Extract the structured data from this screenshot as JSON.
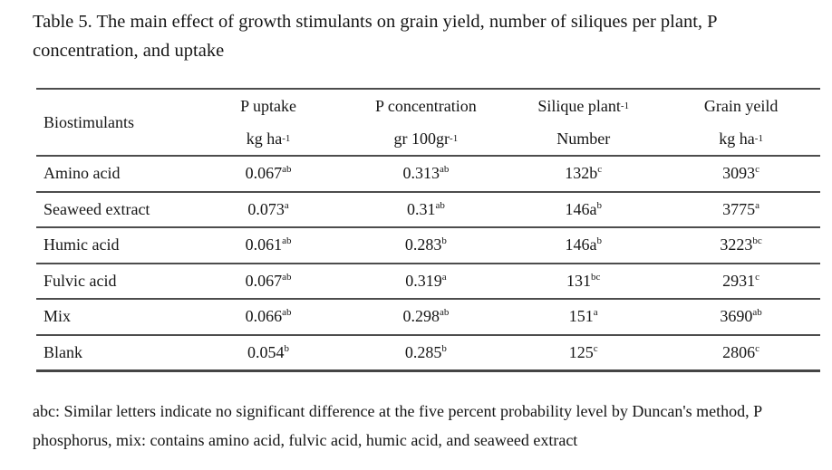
{
  "page": {
    "background": "#ffffff",
    "text_color": "#161616",
    "rule_color": "#4d4d4d"
  },
  "caption": "Table 5. The main effect of growth stimulants on grain yield, number of siliques per plant, P concentration, and uptake",
  "table": {
    "row_header_title": "Biostimulants",
    "columns": [
      {
        "id": "p-uptake",
        "line1": [
          {
            "t": "P uptake"
          }
        ],
        "line2": [
          {
            "t": "kg ha"
          },
          {
            "s": "-1"
          }
        ]
      },
      {
        "id": "p-concentration",
        "line1": [
          {
            "t": "P concentration"
          }
        ],
        "line2": [
          {
            "t": "gr 100gr"
          },
          {
            "s": "-1"
          }
        ]
      },
      {
        "id": "silique-plant",
        "line1": [
          {
            "t": "Silique plant"
          },
          {
            "s": "-1"
          }
        ],
        "line2": [
          {
            "t": "Number"
          }
        ]
      },
      {
        "id": "grain-yeild",
        "line1": [
          {
            "t": "Grain yeild"
          }
        ],
        "line2": [
          {
            "t": "kg ha"
          },
          {
            "s": "-1"
          }
        ]
      }
    ],
    "rows": [
      {
        "name": "Amino acid",
        "cells": [
          [
            {
              "t": "0.067"
            },
            {
              "s": "ab"
            }
          ],
          [
            {
              "t": "0.313"
            },
            {
              "s": "ab"
            }
          ],
          [
            {
              "t": "132b"
            },
            {
              "s": "c"
            }
          ],
          [
            {
              "t": "3093"
            },
            {
              "s": "c"
            }
          ]
        ]
      },
      {
        "name": "Seaweed extract",
        "cells": [
          [
            {
              "t": "0.073"
            },
            {
              "s": "a"
            }
          ],
          [
            {
              "t": "0.31"
            },
            {
              "s": "ab"
            }
          ],
          [
            {
              "t": "146a"
            },
            {
              "s": "b"
            }
          ],
          [
            {
              "t": "3775"
            },
            {
              "s": "a"
            }
          ]
        ]
      },
      {
        "name": "Humic acid",
        "cells": [
          [
            {
              "t": "0.061"
            },
            {
              "s": "ab"
            }
          ],
          [
            {
              "t": "0.283"
            },
            {
              "s": "b"
            }
          ],
          [
            {
              "t": "146a"
            },
            {
              "s": "b"
            }
          ],
          [
            {
              "t": "3223"
            },
            {
              "s": "bc"
            }
          ]
        ]
      },
      {
        "name": "Fulvic acid",
        "cells": [
          [
            {
              "t": "0.067"
            },
            {
              "s": "ab"
            }
          ],
          [
            {
              "t": "0.319"
            },
            {
              "s": "a"
            }
          ],
          [
            {
              "t": "131"
            },
            {
              "s": "bc"
            }
          ],
          [
            {
              "t": "2931"
            },
            {
              "s": "c"
            }
          ]
        ]
      },
      {
        "name": "Mix",
        "cells": [
          [
            {
              "t": "0.066"
            },
            {
              "s": "ab"
            }
          ],
          [
            {
              "t": "0.298"
            },
            {
              "s": "ab"
            }
          ],
          [
            {
              "t": "151"
            },
            {
              "s": "a"
            }
          ],
          [
            {
              "t": "3690"
            },
            {
              "s": "ab"
            }
          ]
        ]
      },
      {
        "name": "Blank",
        "cells": [
          [
            {
              "t": "0.054"
            },
            {
              "s": "b"
            }
          ],
          [
            {
              "t": "0.285"
            },
            {
              "s": "b"
            }
          ],
          [
            {
              "t": "125"
            },
            {
              "s": "c"
            }
          ],
          [
            {
              "t": "2806"
            },
            {
              "s": "c"
            }
          ]
        ]
      }
    ]
  },
  "footnote": "abc: Similar letters indicate no significant difference at the five percent probability level by Duncan's method, P phosphorus, mix: contains amino acid, fulvic acid, humic acid, and seaweed extract"
}
